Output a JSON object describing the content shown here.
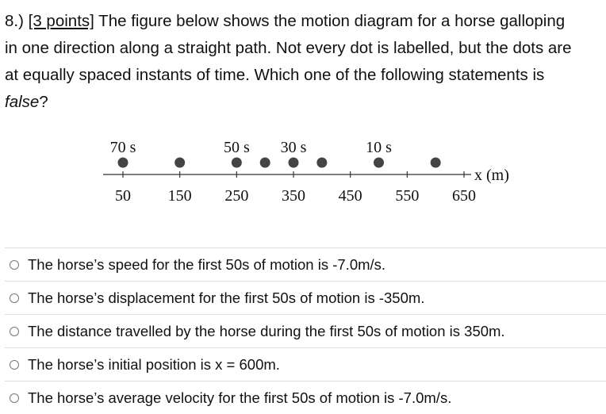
{
  "question": {
    "number": "8.)",
    "points": "[3 points]",
    "line1": " The figure below shows the motion diagram for a horse galloping",
    "line2": "in one direction along a straight path.  Not every dot is labelled, but the dots are",
    "line3": "at equally spaced instants of time.  Which one of the following statements is",
    "emphasis": "false",
    "qmark": "?"
  },
  "diagram": {
    "axis_label": "x (m)",
    "tick_labels": [
      "50",
      "150",
      "250",
      "350",
      "450",
      "550",
      "650"
    ],
    "time_labels": [
      {
        "text": "70 s",
        "x_m": 50
      },
      {
        "text": "50 s",
        "x_m": 250
      },
      {
        "text": "30 s",
        "x_m": 350
      },
      {
        "text": "10 s",
        "x_m": 500
      }
    ],
    "dot_positions_m": [
      50,
      150,
      250,
      300,
      350,
      400,
      500,
      600
    ],
    "dot_color": "#444444"
  },
  "choices": [
    {
      "label": "The horse’s speed for the first 50s of motion is -7.0m/s."
    },
    {
      "label": "The horse’s displacement for the first 50s of motion is -350m."
    },
    {
      "label": "The distance travelled by the horse during the first 50s of motion is 350m."
    },
    {
      "label": "The horse’s initial position is x = 600m."
    },
    {
      "label": "The horse’s average velocity for the first 50s of motion is -7.0m/s."
    }
  ]
}
